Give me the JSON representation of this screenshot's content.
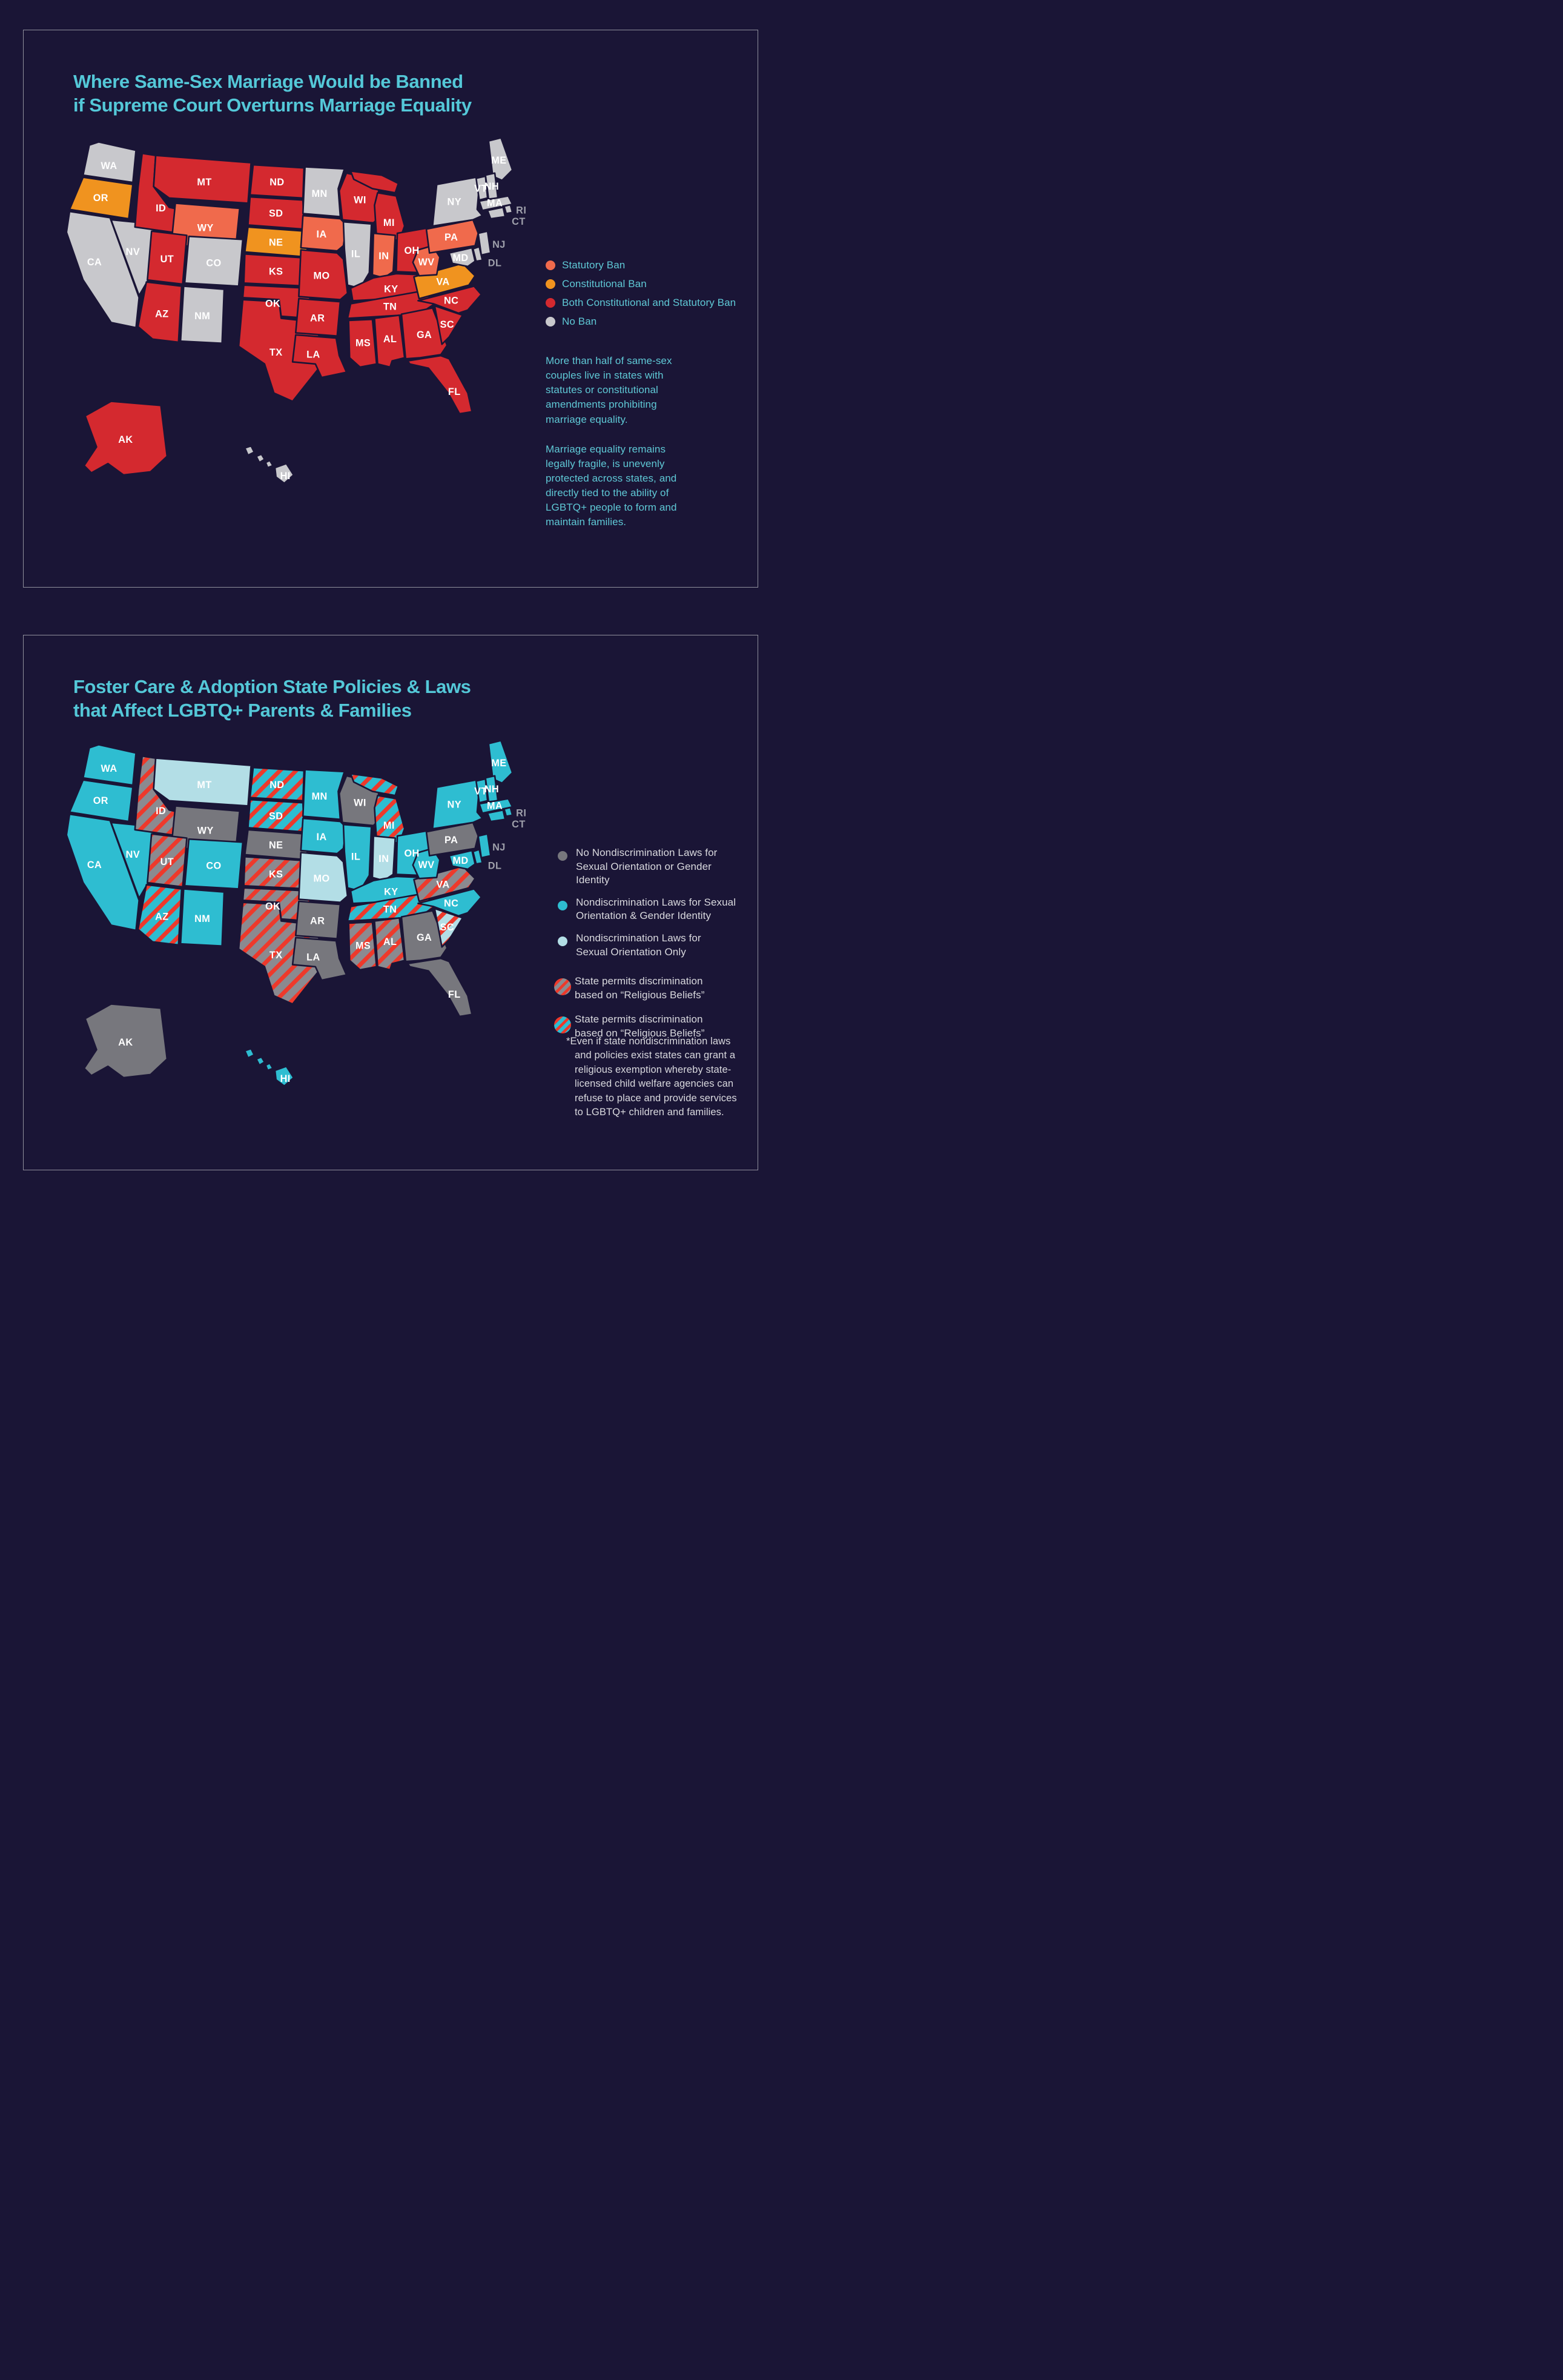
{
  "page": {
    "background": "#1A1536",
    "panel_border": "#8F8F9C"
  },
  "panel1": {
    "title": "Where Same-Sex Marriage Would be Banned\nif Supreme Court Overturns Marriage Equality",
    "legend": [
      {
        "key": "statutory",
        "label": "Statutory Ban"
      },
      {
        "key": "constitutional",
        "label": "Constitutional Ban"
      },
      {
        "key": "both",
        "label": "Both Constitutional and Statutory Ban"
      },
      {
        "key": "none",
        "label": "No Ban"
      }
    ],
    "paragraphs": [
      "More than half of same-sex couples live in states with statutes or constitutional amendments prohibiting marriage equality.",
      "Marriage equality remains legally fragile, is unevenly protected across states, and directly tied to the ability of LGBTQ+ people to form and maintain families."
    ]
  },
  "panel2": {
    "title": "Foster Care & Adoption State Policies & Laws\nthat Affect LGBTQ+ Parents & Families",
    "legend": [
      {
        "key": "none",
        "swatch": "dot",
        "label": "No Nondiscrimination Laws for\nSexual Orientation or Gender Identity"
      },
      {
        "key": "so_gi",
        "swatch": "dot",
        "label": "Nondiscrimination Laws for Sexual\nOrientation & Gender Identity"
      },
      {
        "key": "so_only",
        "swatch": "dot",
        "label": "Nondiscrimination Laws for\nSexual Orientation Only"
      },
      {
        "key": "none_striped",
        "swatch": "striped",
        "label": "State permits discrimination\nbased on “Religious Beliefs”"
      },
      {
        "key": "so_gi_striped",
        "swatch": "striped",
        "label": "State permits discrimination\nbased on “Religious Beliefs”"
      }
    ],
    "note_marker": "*",
    "note": "Even if state nondiscrimination laws and policies exist states can grant a religious exemption whereby state-licensed child welfare agencies can refuse to place and provide services to LGBTQ+ children and families."
  },
  "map1_colors": {
    "statutory": "#F06A4C",
    "constitutional": "#F0931F",
    "both": "#D4292F",
    "none": "#C8C8CC"
  },
  "map2_colors": {
    "none": "#77777D",
    "so_gi": "#2EBDD1",
    "so_only": "#B3DEE6",
    "striped_base_none": "#8B8A90",
    "stripe_red": "#EE392B"
  },
  "label_colors": {
    "inside": "#FFFFFF",
    "outside": "#9FA0AB"
  },
  "states": [
    {
      "abbr": "WA",
      "label": "WA",
      "marriage": "none",
      "foster": "so_gi",
      "label_style": "inside"
    },
    {
      "abbr": "OR",
      "label": "OR",
      "marriage": "constitutional",
      "foster": "so_gi",
      "label_style": "inside"
    },
    {
      "abbr": "CA",
      "label": "CA",
      "marriage": "none",
      "foster": "so_gi",
      "label_style": "inside"
    },
    {
      "abbr": "NV",
      "label": "NV",
      "marriage": "none",
      "foster": "so_gi",
      "label_style": "inside"
    },
    {
      "abbr": "ID",
      "label": "ID",
      "marriage": "both",
      "foster": "none_striped",
      "label_style": "inside"
    },
    {
      "abbr": "MT",
      "label": "MT",
      "marriage": "both",
      "foster": "so_only",
      "label_style": "inside"
    },
    {
      "abbr": "WY",
      "label": "WY",
      "marriage": "statutory",
      "foster": "none",
      "label_style": "inside"
    },
    {
      "abbr": "UT",
      "label": "UT",
      "marriage": "both",
      "foster": "none_striped",
      "label_style": "inside"
    },
    {
      "abbr": "CO",
      "label": "CO",
      "marriage": "none",
      "foster": "so_gi",
      "label_style": "inside"
    },
    {
      "abbr": "AZ",
      "label": "AZ",
      "marriage": "both",
      "foster": "so_gi_striped",
      "label_style": "inside"
    },
    {
      "abbr": "NM",
      "label": "NM",
      "marriage": "none",
      "foster": "so_gi",
      "label_style": "inside"
    },
    {
      "abbr": "ND",
      "label": "ND",
      "marriage": "both",
      "foster": "so_gi_striped",
      "label_style": "inside"
    },
    {
      "abbr": "SD",
      "label": "SD",
      "marriage": "both",
      "foster": "so_gi_striped",
      "label_style": "inside"
    },
    {
      "abbr": "NE",
      "label": "NE",
      "marriage": "constitutional",
      "foster": "none",
      "label_style": "inside"
    },
    {
      "abbr": "KS",
      "label": "KS",
      "marriage": "both",
      "foster": "none_striped",
      "label_style": "inside"
    },
    {
      "abbr": "OK",
      "label": "OK",
      "marriage": "both",
      "foster": "none_striped",
      "label_style": "inside"
    },
    {
      "abbr": "TX",
      "label": "TX",
      "marriage": "both",
      "foster": "none_striped",
      "label_style": "inside"
    },
    {
      "abbr": "MN",
      "label": "MN",
      "marriage": "none",
      "foster": "so_gi",
      "label_style": "inside"
    },
    {
      "abbr": "IA",
      "label": "IA",
      "marriage": "statutory",
      "foster": "so_gi",
      "label_style": "inside"
    },
    {
      "abbr": "MO",
      "label": "MO",
      "marriage": "both",
      "foster": "so_only",
      "label_style": "inside"
    },
    {
      "abbr": "AR",
      "label": "AR",
      "marriage": "both",
      "foster": "none",
      "label_style": "inside"
    },
    {
      "abbr": "LA",
      "label": "LA",
      "marriage": "both",
      "foster": "none",
      "label_style": "inside"
    },
    {
      "abbr": "WI",
      "label": "WI",
      "marriage": "both",
      "foster": "none",
      "label_style": "inside"
    },
    {
      "abbr": "IL",
      "label": "IL",
      "marriage": "none",
      "foster": "so_gi",
      "label_style": "inside"
    },
    {
      "abbr": "MI",
      "label": "MI",
      "marriage": "both",
      "foster": "so_gi_striped",
      "label_style": "inside"
    },
    {
      "abbr": "IN",
      "label": "IN",
      "marriage": "statutory",
      "foster": "so_only",
      "label_style": "inside"
    },
    {
      "abbr": "OH",
      "label": "OH",
      "marriage": "both",
      "foster": "so_gi",
      "label_style": "inside"
    },
    {
      "abbr": "KY",
      "label": "KY",
      "marriage": "both",
      "foster": "so_gi",
      "label_style": "inside"
    },
    {
      "abbr": "TN",
      "label": "TN",
      "marriage": "both",
      "foster": "so_gi_striped",
      "label_style": "inside"
    },
    {
      "abbr": "MS",
      "label": "MS",
      "marriage": "both",
      "foster": "none_striped",
      "label_style": "inside"
    },
    {
      "abbr": "AL",
      "label": "AL",
      "marriage": "both",
      "foster": "none_striped",
      "label_style": "inside"
    },
    {
      "abbr": "GA",
      "label": "GA",
      "marriage": "both",
      "foster": "none",
      "label_style": "inside"
    },
    {
      "abbr": "FL",
      "label": "FL",
      "marriage": "both",
      "foster": "none",
      "label_style": "inside"
    },
    {
      "abbr": "SC",
      "label": "SC",
      "marriage": "both",
      "foster": "so_only_striped",
      "label_style": "inside"
    },
    {
      "abbr": "NC",
      "label": "NC",
      "marriage": "both",
      "foster": "so_gi",
      "label_style": "inside"
    },
    {
      "abbr": "VA",
      "label": "VA",
      "marriage": "constitutional",
      "foster": "none_striped",
      "label_style": "inside"
    },
    {
      "abbr": "WV",
      "label": "WV",
      "marriage": "statutory",
      "foster": "so_gi",
      "label_style": "inside"
    },
    {
      "abbr": "PA",
      "label": "PA",
      "marriage": "statutory",
      "foster": "none",
      "label_style": "inside"
    },
    {
      "abbr": "NY",
      "label": "NY",
      "marriage": "none",
      "foster": "so_gi",
      "label_style": "inside"
    },
    {
      "abbr": "ME",
      "label": "ME",
      "marriage": "none",
      "foster": "so_gi",
      "label_style": "inside"
    },
    {
      "abbr": "VT",
      "label": "VT",
      "marriage": "none",
      "foster": "so_gi",
      "label_style": "inside"
    },
    {
      "abbr": "NH",
      "label": "NH",
      "marriage": "none",
      "foster": "so_gi",
      "label_style": "inside"
    },
    {
      "abbr": "MA",
      "label": "MA",
      "marriage": "none",
      "foster": "so_gi",
      "label_style": "inside"
    },
    {
      "abbr": "RI",
      "label": "RI",
      "marriage": "none",
      "foster": "so_gi",
      "label_style": "outside"
    },
    {
      "abbr": "CT",
      "label": "CT",
      "marriage": "none",
      "foster": "so_gi",
      "label_style": "outside"
    },
    {
      "abbr": "NJ",
      "label": "NJ",
      "marriage": "none",
      "foster": "so_gi",
      "label_style": "outside"
    },
    {
      "abbr": "DE",
      "label": "DL",
      "marriage": "none",
      "foster": "so_gi",
      "label_style": "outside"
    },
    {
      "abbr": "MD",
      "label": "MD",
      "marriage": "none",
      "foster": "so_gi",
      "label_style": "inside"
    },
    {
      "abbr": "AK",
      "label": "AK",
      "marriage": "both",
      "foster": "none",
      "label_style": "inside"
    },
    {
      "abbr": "HI",
      "label": "HI",
      "marriage": "none",
      "foster": "so_gi",
      "label_style": "inside"
    }
  ]
}
